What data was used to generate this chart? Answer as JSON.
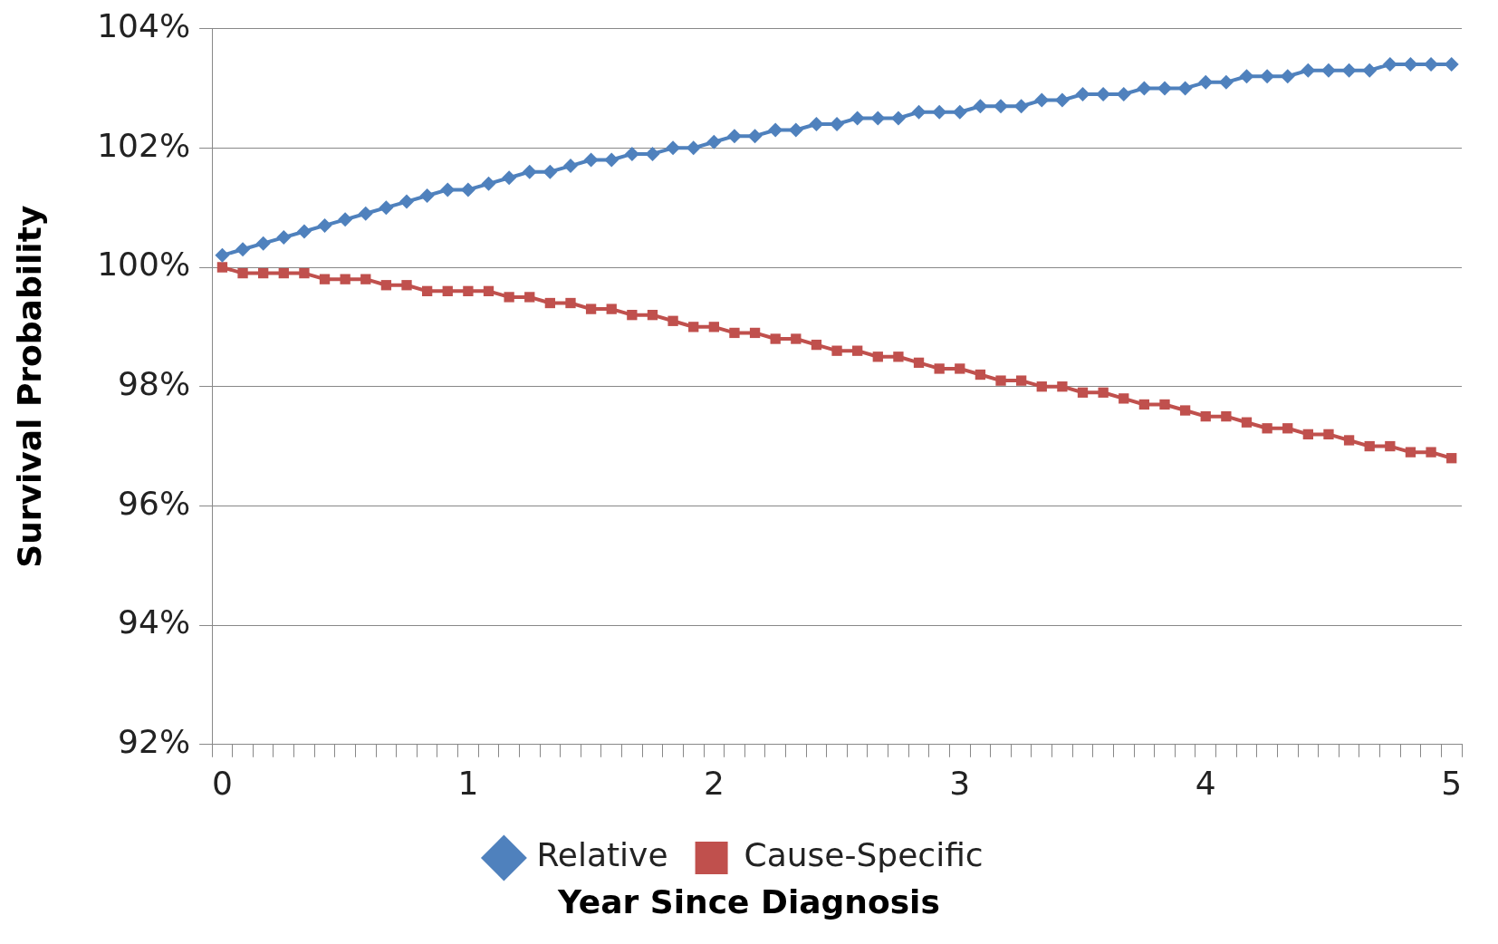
{
  "chart_data": {
    "type": "line",
    "xlabel": "Year Since Diagnosis",
    "ylabel": "Survival Probability",
    "categories": [
      "0",
      null,
      null,
      null,
      null,
      null,
      null,
      null,
      null,
      null,
      null,
      null,
      "1",
      null,
      null,
      null,
      null,
      null,
      null,
      null,
      null,
      null,
      null,
      null,
      "2",
      null,
      null,
      null,
      null,
      null,
      null,
      null,
      null,
      null,
      null,
      null,
      "3",
      null,
      null,
      null,
      null,
      null,
      null,
      null,
      null,
      null,
      null,
      null,
      "4",
      null,
      null,
      null,
      null,
      null,
      null,
      null,
      null,
      null,
      null,
      null,
      "5"
    ],
    "series": [
      {
        "name": "Relative",
        "color": "#4f81bd",
        "marker": "diamond",
        "values": [
          100.2,
          100.3,
          100.4,
          100.5,
          100.6,
          100.7,
          100.8,
          100.9,
          101.0,
          101.1,
          101.2,
          101.3,
          101.3,
          101.4,
          101.5,
          101.6,
          101.6,
          101.7,
          101.8,
          101.8,
          101.9,
          101.9,
          102.0,
          102.0,
          102.1,
          102.2,
          102.2,
          102.3,
          102.3,
          102.4,
          102.4,
          102.5,
          102.5,
          102.5,
          102.6,
          102.6,
          102.6,
          102.7,
          102.7,
          102.7,
          102.8,
          102.8,
          102.9,
          102.9,
          102.9,
          103.0,
          103.0,
          103.0,
          103.1,
          103.1,
          103.2,
          103.2,
          103.2,
          103.3,
          103.3,
          103.3,
          103.3,
          103.4,
          103.4,
          103.4,
          103.4
        ]
      },
      {
        "name": "Cause-Specific",
        "color": "#c0504d",
        "marker": "square",
        "values": [
          100.0,
          99.9,
          99.9,
          99.9,
          99.9,
          99.8,
          99.8,
          99.8,
          99.7,
          99.7,
          99.6,
          99.6,
          99.6,
          99.6,
          99.5,
          99.5,
          99.4,
          99.4,
          99.3,
          99.3,
          99.2,
          99.2,
          99.1,
          99.0,
          99.0,
          98.9,
          98.9,
          98.8,
          98.8,
          98.7,
          98.6,
          98.6,
          98.5,
          98.5,
          98.4,
          98.3,
          98.3,
          98.2,
          98.1,
          98.1,
          98.0,
          98.0,
          97.9,
          97.9,
          97.8,
          97.7,
          97.7,
          97.6,
          97.5,
          97.5,
          97.4,
          97.3,
          97.3,
          97.2,
          97.2,
          97.1,
          97.0,
          97.0,
          96.9,
          96.9,
          96.8
        ]
      }
    ],
    "ylim": [
      92,
      104
    ],
    "yticks": [
      {
        "value": 92,
        "label": "92%"
      },
      {
        "value": 94,
        "label": "94%"
      },
      {
        "value": 96,
        "label": "96%"
      },
      {
        "value": 98,
        "label": "98%"
      },
      {
        "value": 100,
        "label": "100%"
      },
      {
        "value": 102,
        "label": "102%"
      },
      {
        "value": 104,
        "label": "104%"
      }
    ],
    "grid": "y",
    "legend": "bottom",
    "line_style": "solid"
  }
}
